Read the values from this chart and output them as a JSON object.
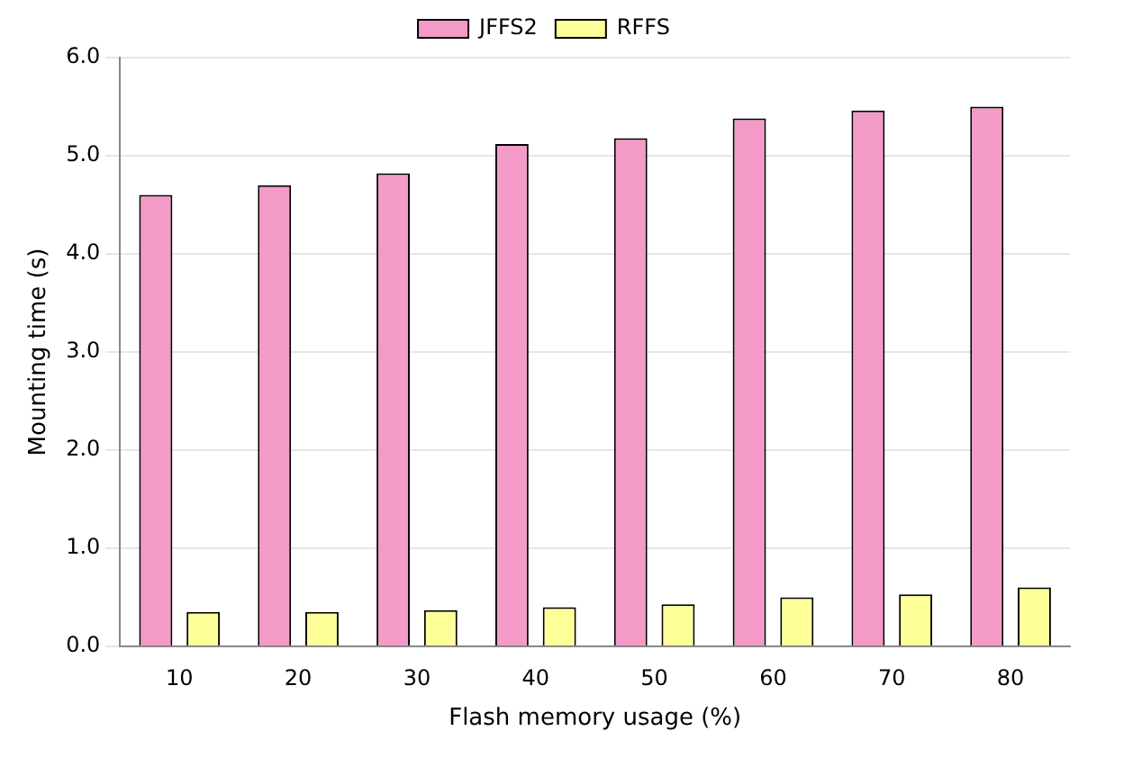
{
  "chart_data": {
    "type": "bar",
    "xlabel": "Flash memory usage (%)",
    "ylabel": "Mounting time (s)",
    "categories": [
      "10",
      "20",
      "30",
      "40",
      "50",
      "60",
      "70",
      "80"
    ],
    "series": [
      {
        "name": "JFFS2",
        "color": "#f49ac8",
        "values": [
          4.6,
          4.7,
          4.82,
          5.12,
          5.18,
          5.38,
          5.46,
          5.5
        ]
      },
      {
        "name": "RFFS",
        "color": "#ffff99",
        "values": [
          0.35,
          0.35,
          0.37,
          0.4,
          0.43,
          0.5,
          0.53,
          0.6
        ]
      }
    ],
    "ylim": [
      0,
      6
    ],
    "yticks": [
      {
        "value": 0,
        "label": "0.0"
      },
      {
        "value": 1,
        "label": "1.0"
      },
      {
        "value": 2,
        "label": "2.0"
      },
      {
        "value": 3,
        "label": "3.0"
      },
      {
        "value": 4,
        "label": "4.0"
      },
      {
        "value": 5,
        "label": "5.0"
      },
      {
        "value": 6,
        "label": "6.0"
      }
    ],
    "grid": "y",
    "legend": "top"
  }
}
